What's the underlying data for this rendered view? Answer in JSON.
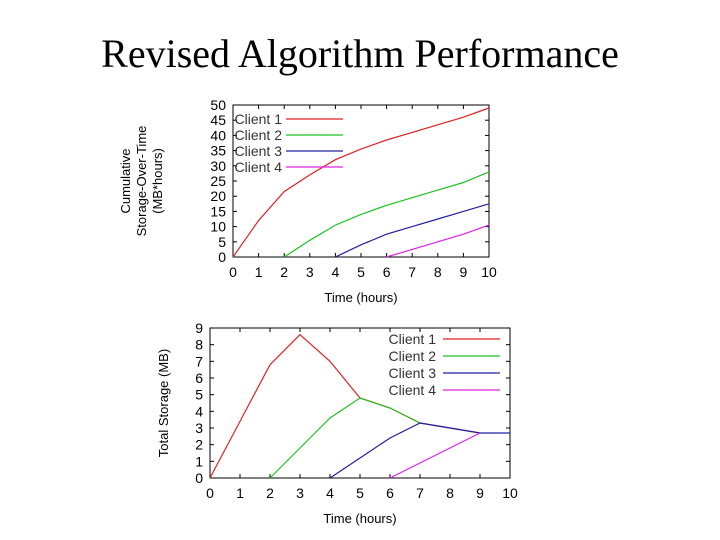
{
  "slide": {
    "title": "Revised Algorithm Performance"
  },
  "chart_data": [
    {
      "type": "line",
      "xlabel": "Time (hours)",
      "ylabel": [
        "Cumulative",
        "Storage-Over-Time",
        "(MB*hours)"
      ],
      "xlim": [
        0,
        10
      ],
      "ylim": [
        0,
        50
      ],
      "xticks": [
        0,
        1,
        2,
        3,
        4,
        5,
        6,
        7,
        8,
        9,
        10
      ],
      "yticks": [
        0,
        5,
        10,
        15,
        20,
        25,
        30,
        35,
        40,
        45,
        50
      ],
      "legend_position": "top-left",
      "series": [
        {
          "name": "Client 1",
          "color": "#e02020",
          "points": [
            [
              0,
              0
            ],
            [
              1,
              12
            ],
            [
              2,
              21.5
            ],
            [
              3,
              27
            ],
            [
              4,
              32
            ],
            [
              5,
              35.5
            ],
            [
              6,
              38.5
            ],
            [
              7,
              41
            ],
            [
              8,
              43.5
            ],
            [
              9,
              46
            ],
            [
              10,
              49
            ]
          ]
        },
        {
          "name": "Client 2",
          "color": "#20c020",
          "points": [
            [
              2,
              0
            ],
            [
              3,
              5.5
            ],
            [
              4,
              10.5
            ],
            [
              5,
              14
            ],
            [
              6,
              17
            ],
            [
              7,
              19.5
            ],
            [
              8,
              22
            ],
            [
              9,
              24.5
            ],
            [
              10,
              28
            ]
          ]
        },
        {
          "name": "Client 3",
          "color": "#2020a0",
          "points": [
            [
              4,
              0
            ],
            [
              5,
              4
            ],
            [
              6,
              7.5
            ],
            [
              7,
              10
            ],
            [
              8,
              12.5
            ],
            [
              9,
              15
            ],
            [
              10,
              17.5
            ]
          ]
        },
        {
          "name": "Client 4",
          "color": "#e020e0",
          "points": [
            [
              6,
              0
            ],
            [
              7,
              2.5
            ],
            [
              8,
              5
            ],
            [
              9,
              7.5
            ],
            [
              10,
              10.5
            ]
          ]
        }
      ]
    },
    {
      "type": "line",
      "xlabel": "Time (hours)",
      "ylabel": [
        "Total Storage (MB)"
      ],
      "xlim": [
        0,
        10
      ],
      "ylim": [
        0,
        9
      ],
      "xticks": [
        0,
        1,
        2,
        3,
        4,
        5,
        6,
        7,
        8,
        9,
        10
      ],
      "yticks": [
        0,
        1,
        2,
        3,
        4,
        5,
        6,
        7,
        8,
        9
      ],
      "legend_position": "top-right",
      "series": [
        {
          "name": "Client 1",
          "color": "#e02020",
          "points": [
            [
              0,
              0
            ],
            [
              2,
              6.8
            ],
            [
              3,
              8.6
            ],
            [
              4,
              7
            ],
            [
              5,
              4.8
            ],
            [
              6,
              4.2
            ],
            [
              7,
              3.3
            ],
            [
              8,
              3
            ],
            [
              9,
              2.7
            ]
          ]
        },
        {
          "name": "Client 2",
          "color": "#20c020",
          "points": [
            [
              2,
              0
            ],
            [
              3,
              1.8
            ],
            [
              4,
              3.6
            ],
            [
              5,
              4.8
            ],
            [
              6,
              4.2
            ],
            [
              7,
              3.3
            ]
          ]
        },
        {
          "name": "Client 3",
          "color": "#2020a0",
          "points": [
            [
              4,
              0
            ],
            [
              5,
              1.2
            ],
            [
              6,
              2.4
            ],
            [
              7,
              3.3
            ],
            [
              8,
              3
            ],
            [
              9,
              2.7
            ],
            [
              10,
              2.7
            ]
          ]
        },
        {
          "name": "Client 4",
          "color": "#e020e0",
          "points": [
            [
              6,
              0
            ],
            [
              7,
              0.9
            ],
            [
              8,
              1.8
            ],
            [
              9,
              2.7
            ]
          ]
        }
      ]
    }
  ]
}
